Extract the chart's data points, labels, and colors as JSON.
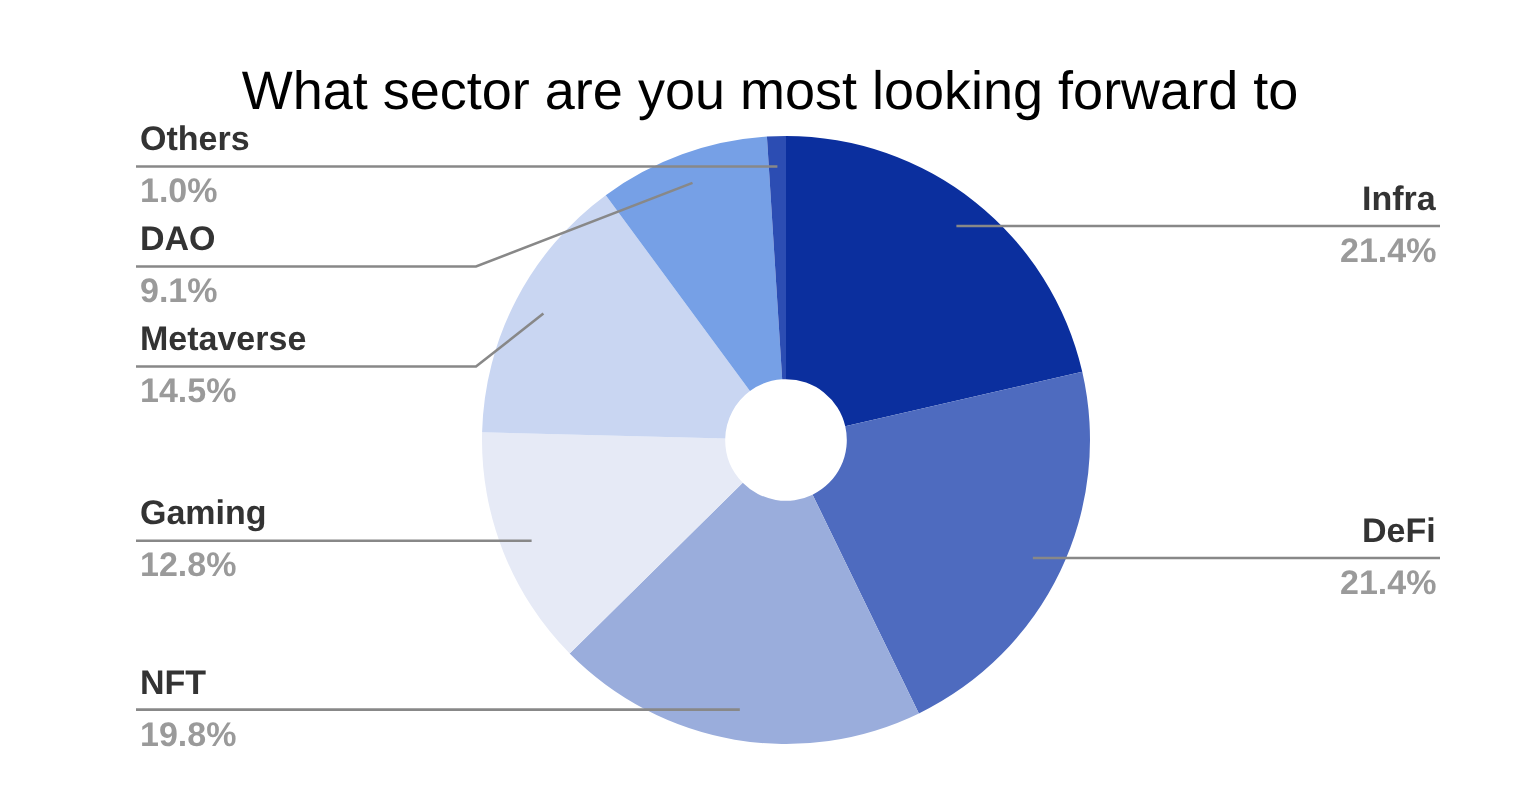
{
  "chart_data": {
    "type": "donut",
    "title": "What sector are you most looking forward to",
    "categories": [
      "Infra",
      "DeFi",
      "NFT",
      "Gaming",
      "Metaverse",
      "DAO",
      "Others"
    ],
    "values": [
      21.4,
      21.4,
      19.8,
      12.8,
      14.5,
      9.1,
      1.0
    ],
    "colors": [
      "#0b2f9e",
      "#4e6bbf",
      "#9aaddc",
      "#e6eaf6",
      "#c9d6f2",
      "#76a0e6",
      "#2c4db3"
    ],
    "value_labels": [
      "21.4%",
      "21.4%",
      "19.8%",
      "12.8%",
      "14.5%",
      "9.1%",
      "1.0%"
    ]
  }
}
